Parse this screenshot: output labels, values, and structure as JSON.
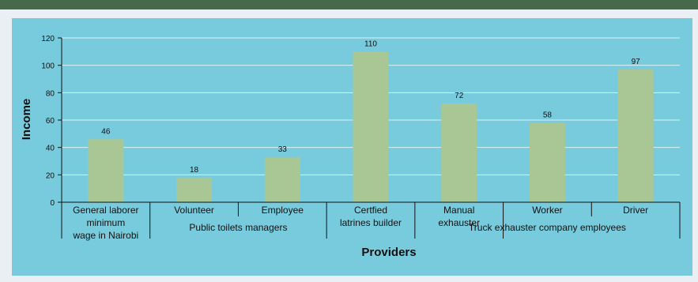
{
  "colors": {
    "top_band": "#47694a",
    "panel_background": "#78cbdc",
    "bar_fill": "#a8c795",
    "gridline": "#d9f2f7",
    "axis": "#111111"
  },
  "chart_data": {
    "type": "bar",
    "title": "",
    "xlabel": "Providers",
    "ylabel": "Income",
    "ylim": [
      0,
      120
    ],
    "yticks": [
      0,
      20,
      40,
      60,
      80,
      100,
      120
    ],
    "grid": true,
    "categories": [
      "General laborer minimum wage in Nairobi",
      "Volunteer",
      "Employee",
      "Certfied latrines builder",
      "Manual exhauster",
      "Worker",
      "Driver"
    ],
    "category_label_lines": [
      [
        "General laborer",
        "minimum",
        "wage in Nairobi"
      ],
      [
        "Volunteer"
      ],
      [
        "Employee"
      ],
      [
        "Certfied",
        "latrines builder"
      ],
      [
        "Manual",
        "exhauster"
      ],
      [
        "Worker"
      ],
      [
        "Driver"
      ]
    ],
    "values": [
      46,
      18,
      33,
      110,
      72,
      58,
      97
    ],
    "group_labels": [
      "Public toilets managers",
      "Truck exhauster company employees"
    ]
  }
}
